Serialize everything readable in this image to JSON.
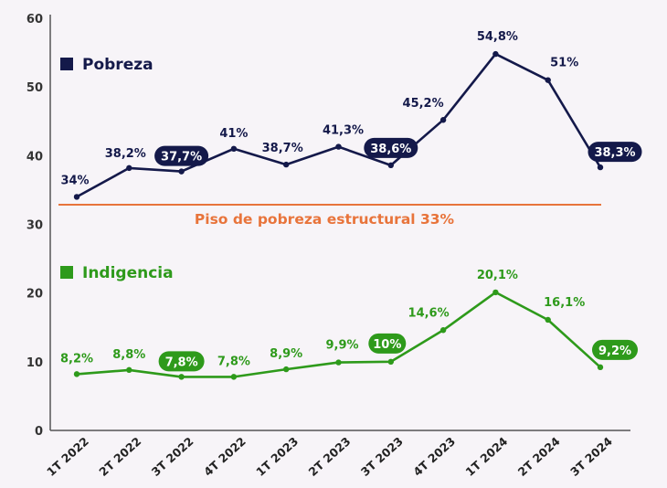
{
  "chart_data": {
    "type": "line",
    "categories": [
      "1T 2022",
      "2T 2022",
      "3T 2022",
      "4T 2022",
      "1T 2023",
      "2T 2023",
      "3T 2023",
      "4T 2023",
      "1T 2024",
      "2T 2024",
      "3T 2024"
    ],
    "ylim": [
      0,
      60
    ],
    "yticks": [
      "0",
      "10",
      "20",
      "30",
      "40",
      "50",
      "60"
    ],
    "grid": false,
    "series": [
      {
        "name": "Pobreza",
        "color": "#14194a",
        "values": [
          34,
          38.2,
          37.7,
          41,
          38.7,
          41.3,
          38.6,
          45.2,
          54.8,
          51,
          38.3
        ],
        "labels": [
          "34%",
          "38,2%",
          "37,7%",
          "41%",
          "38,7%",
          "41,3%",
          "38,6%",
          "45,2%",
          "54,8%",
          "51%",
          "38,3%"
        ],
        "highlighted": [
          2,
          6,
          10
        ]
      },
      {
        "name": "Indigencia",
        "color": "#2e9a1b",
        "values": [
          8.2,
          8.8,
          7.8,
          7.8,
          8.9,
          9.9,
          10,
          14.6,
          20.1,
          16.1,
          9.2
        ],
        "labels": [
          "8,2%",
          "8,8%",
          "7,8%",
          "7,8%",
          "8,9%",
          "9,9%",
          "10%",
          "14,6%",
          "20,1%",
          "16,1%",
          "9,2%"
        ],
        "highlighted": [
          2,
          6,
          10
        ]
      }
    ],
    "reference_line": {
      "value": 33,
      "label": "Piso de pobreza estructural 33%",
      "color": "#e8743b"
    },
    "legend": [
      {
        "label": "Pobreza",
        "color": "#14194a"
      },
      {
        "label": "Indigencia",
        "color": "#2e9a1b"
      }
    ],
    "axis_color": "#555555",
    "highlight_text_color": "#ffffff"
  }
}
